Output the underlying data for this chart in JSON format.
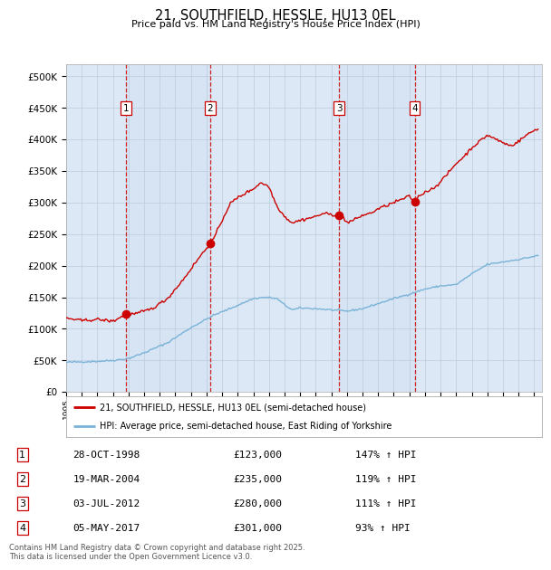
{
  "title": "21, SOUTHFIELD, HESSLE, HU13 0EL",
  "subtitle": "Price paid vs. HM Land Registry's House Price Index (HPI)",
  "hpi_label": "HPI: Average price, semi-detached house, East Riding of Yorkshire",
  "property_label": "21, SOUTHFIELD, HESSLE, HU13 0EL (semi-detached house)",
  "sales": [
    {
      "num": 1,
      "date": "28-OCT-1998",
      "year": 1998.83,
      "price": 123000,
      "hpi_pct": "147% ↑ HPI"
    },
    {
      "num": 2,
      "date": "19-MAR-2004",
      "year": 2004.22,
      "price": 235000,
      "hpi_pct": "119% ↑ HPI"
    },
    {
      "num": 3,
      "date": "03-JUL-2012",
      "year": 2012.5,
      "price": 280000,
      "hpi_pct": "111% ↑ HPI"
    },
    {
      "num": 4,
      "date": "05-MAY-2017",
      "year": 2017.34,
      "price": 301000,
      "hpi_pct": "93% ↑ HPI"
    }
  ],
  "ylim": [
    0,
    520000
  ],
  "xlim_start": 1995.0,
  "xlim_end": 2025.5,
  "bg_color": "#dce8f5",
  "grid_color": "#bbccdd",
  "hpi_line_color": "#7ab3d8",
  "price_line_color": "#cc0000",
  "vline_color": "#cc0000",
  "sale_marker_color": "#cc0000",
  "footer": "Contains HM Land Registry data © Crown copyright and database right 2025.\nThis data is licensed under the Open Government Licence v3.0."
}
